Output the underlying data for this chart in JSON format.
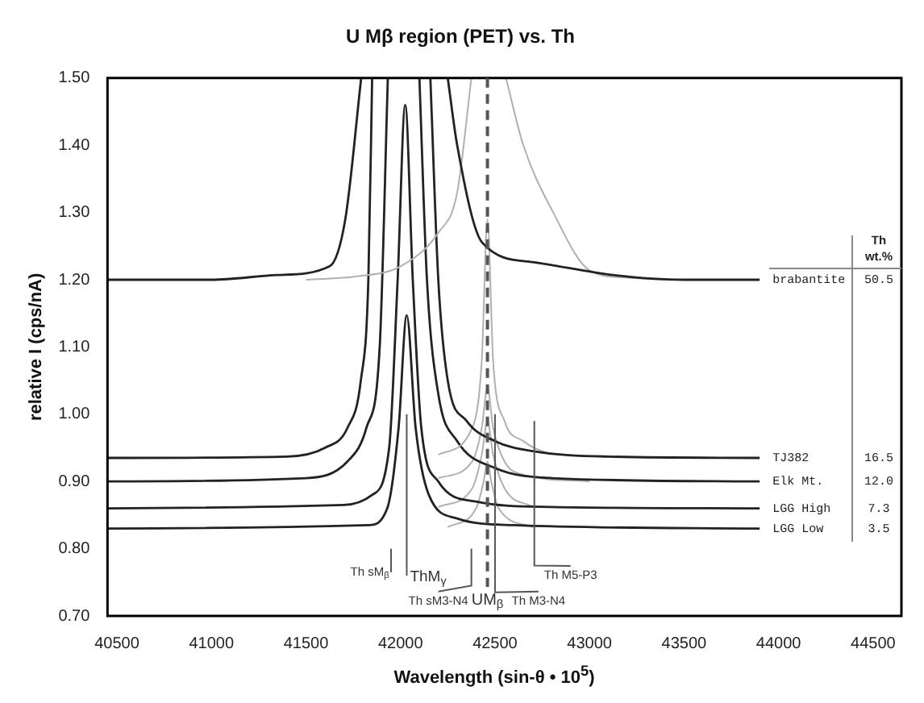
{
  "chart_data": {
    "type": "line",
    "title": "U Mβ region (PET) vs. Th",
    "xlabel": "Wavelength (sin-θ • 10$^{5}$)",
    "ylabel": "relative I (cps/nA)",
    "xlim": [
      40450,
      44650
    ],
    "xticks": [
      40500,
      41000,
      41500,
      42000,
      42500,
      43000,
      43500,
      44000,
      44500
    ],
    "ylim": [
      0.7,
      1.5
    ],
    "yticks": [
      {
        "value": 0.7,
        "label": "0.70"
      },
      {
        "value": 0.8,
        "label": "0.80"
      },
      {
        "value": 0.9,
        "label": "0.90"
      },
      {
        "value": 1.0,
        "label": "1.00"
      },
      {
        "value": 1.1,
        "label": "1.10"
      },
      {
        "value": 1.2,
        "label": "1.20"
      },
      {
        "value": 1.3,
        "label": "1.30"
      },
      {
        "value": 1.4,
        "label": "1.40"
      },
      {
        "value": 1.5,
        "label": "1.50"
      }
    ],
    "grid": false,
    "legend": false,
    "marker": "none",
    "series": [
      {
        "name": "brabantite",
        "color": "#222222",
        "x": [
          40450,
          41000,
          41350,
          41625,
          41708,
          41792,
          42020,
          42250,
          42300,
          42433,
          42708,
          43125,
          43500,
          43900
        ],
        "values": [
          1.2,
          1.2,
          1.207,
          1.22,
          1.29,
          1.5,
          null,
          1.5,
          1.4,
          1.255,
          1.226,
          1.207,
          1.2,
          1.2
        ]
      },
      {
        "color": "#b0b0b0",
        "x": [
          41500,
          41770,
          42000,
          42200,
          42300,
          42375,
          42460,
          42558,
          42650,
          42808,
          43000,
          43200,
          43400
        ],
        "values": [
          1.2,
          1.205,
          1.22,
          1.27,
          1.33,
          1.5,
          null,
          1.5,
          1.4,
          1.3,
          1.214,
          1.203,
          1.2
        ]
      },
      {
        "name": "TJ382",
        "color": "#222222",
        "x": [
          40450,
          41400,
          41600,
          41720,
          41790,
          41830,
          41850,
          42000,
          42158,
          42200,
          42250,
          42350,
          42500,
          42700,
          43100,
          43900
        ],
        "values": [
          0.935,
          0.937,
          0.95,
          0.98,
          1.05,
          1.2,
          1.5,
          null,
          1.5,
          1.2,
          1.05,
          0.99,
          0.96,
          0.945,
          0.937,
          0.935
        ]
      },
      {
        "color": "#b0b0b0",
        "x": [
          42200,
          42380,
          42430,
          42460,
          42490,
          42550,
          42650,
          42750,
          43000
        ],
        "values": [
          0.94,
          0.98,
          1.08,
          1.29,
          1.08,
          0.99,
          0.96,
          0.945,
          0.937
        ]
      },
      {
        "name": "Elk Mt.",
        "color": "#222222",
        "x": [
          40450,
          41500,
          41720,
          41820,
          41890,
          41933,
          42030,
          42100,
          42140,
          42200,
          42300,
          42500,
          42800,
          43900
        ],
        "values": [
          0.9,
          0.905,
          0.93,
          0.98,
          1.1,
          1.5,
          null,
          1.5,
          1.2,
          1.03,
          0.96,
          0.92,
          0.905,
          0.9
        ]
      },
      {
        "color": "#b0b0b0",
        "x": [
          42200,
          42380,
          42430,
          42460,
          42490,
          42550,
          42650,
          43000
        ],
        "values": [
          0.905,
          0.93,
          0.98,
          1.04,
          0.98,
          0.93,
          0.91,
          0.9
        ]
      },
      {
        "name": "LGG High",
        "color": "#222222",
        "x": [
          40450,
          41700,
          41850,
          41940,
          41985,
          42025,
          42065,
          42110,
          42200,
          42400,
          42800,
          43900
        ],
        "values": [
          0.86,
          0.865,
          0.88,
          0.95,
          1.2,
          1.46,
          1.2,
          0.98,
          0.9,
          0.87,
          0.862,
          0.86
        ]
      },
      {
        "color": "#b0b0b0",
        "x": [
          42200,
          42380,
          42430,
          42460,
          42490,
          42550,
          42700
        ],
        "values": [
          0.862,
          0.89,
          0.94,
          0.99,
          0.94,
          0.89,
          0.862
        ]
      },
      {
        "name": "LGG Low",
        "color": "#222222",
        "x": [
          40450,
          41830,
          41930,
          41990,
          42033,
          42080,
          42150,
          42300,
          42600,
          43900
        ],
        "values": [
          0.83,
          0.835,
          0.86,
          0.98,
          1.147,
          0.98,
          0.88,
          0.845,
          0.835,
          0.83
        ]
      },
      {
        "color": "#b0b0b0",
        "x": [
          42250,
          42400,
          42440,
          42460,
          42480,
          42520,
          42700
        ],
        "values": [
          0.832,
          0.86,
          0.9,
          0.93,
          0.9,
          0.86,
          0.832
        ]
      }
    ],
    "ref_lines": [
      {
        "axis": "x",
        "value": 42460,
        "label": "UM$_{β}$",
        "color": "#555555",
        "line_style": "dashed"
      }
    ],
    "annotations": [
      "Th sM$_{β}$",
      {
        "text": "ThM$_{γ}$",
        "x": 42033,
        "y": 1.0
      },
      "Th sM3-N4",
      {
        "text": "Th M3-N4",
        "x": 42500,
        "y": 1.0
      },
      "Th M5-P3",
      "Th wt.%",
      "50.5",
      "16.5",
      "12.0",
      "7.3",
      "3.5"
    ]
  }
}
